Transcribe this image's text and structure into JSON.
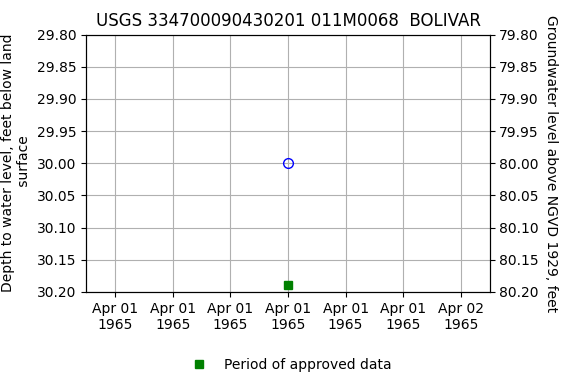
{
  "chart_data": {
    "type": "scatter",
    "title": "USGS 334700090430201 011M0068  BOLIVAR",
    "y_label": "Depth to water level, feet below land\n surface",
    "y2_label": "Groundwater level above NGVD 1929, feet",
    "categories": [
      "Apr 01\n1965",
      "Apr 01\n1965",
      "Apr 01\n1965",
      "Apr 01\n1965",
      "Apr 01\n1965",
      "Apr 01\n1965",
      "Apr 02\n1965"
    ],
    "series": [
      {
        "color": "blue",
        "marker": "open circle",
        "values": [
          null,
          null,
          null,
          30.0,
          null,
          null,
          null
        ]
      },
      {
        "name": "Period of approved data",
        "color": "green",
        "marker": "square",
        "values": [
          null,
          null,
          null,
          30.19,
          null,
          null,
          null
        ]
      }
    ],
    "ylim": [
      30.2,
      29.8
    ],
    "yticks": [
      {
        "value": 29.8,
        "label": "29.80"
      },
      29.85,
      {
        "value": 29.9,
        "label": "29.90"
      },
      29.95,
      {
        "value": 30.0,
        "label": "30.00"
      },
      30.05,
      {
        "value": 30.1,
        "label": "30.10"
      },
      30.15,
      {
        "value": 30.2,
        "label": "30.20"
      }
    ],
    "y2lim": [
      80.2,
      79.8
    ],
    "y2ticks": [
      {
        "value": 79.8,
        "label": "79.80"
      },
      79.85,
      {
        "value": 79.9,
        "label": "79.90"
      },
      79.95,
      {
        "value": 80.0,
        "label": "80.00"
      },
      80.05,
      {
        "value": 80.1,
        "label": "80.10"
      },
      80.15,
      {
        "value": 80.2,
        "label": "80.20"
      }
    ],
    "grid": true,
    "legend": "lower center"
  }
}
